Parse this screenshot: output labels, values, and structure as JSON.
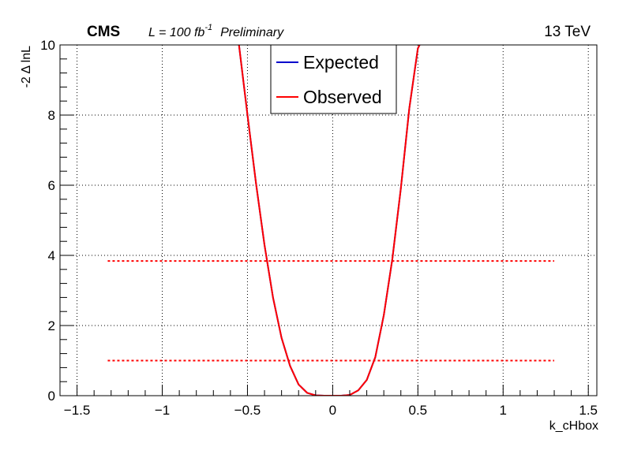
{
  "chart_data": {
    "type": "line",
    "title": "",
    "header": {
      "experiment": "CMS",
      "lumi_prefix": "L = 100 fb",
      "lumi_exponent": "-1",
      "status": "Preliminary",
      "energy": "13 TeV"
    },
    "xlabel": "k_cHbox",
    "ylabel": "-2 Δ lnL",
    "xlim": [
      -1.6,
      1.55
    ],
    "ylim": [
      0,
      10
    ],
    "x_ticks": [
      -1.5,
      -1,
      -0.5,
      0,
      0.5,
      1,
      1.5
    ],
    "x_tick_labels": [
      "−1.5",
      "−1",
      "−0.5",
      "0",
      "0.5",
      "1",
      "1.5"
    ],
    "y_ticks": [
      0,
      2,
      4,
      6,
      8,
      10
    ],
    "y_tick_labels": [
      "0",
      "2",
      "4",
      "6",
      "8",
      "10"
    ],
    "grid": true,
    "legend": {
      "position": "top-center"
    },
    "series": [
      {
        "name": "Expected",
        "color": "#0000cc",
        "style": "solid",
        "x": [
          -0.55,
          -0.5,
          -0.45,
          -0.4,
          -0.35,
          -0.3,
          -0.25,
          -0.2,
          -0.15,
          -0.1,
          -0.05,
          0.0,
          0.05,
          0.1,
          0.15,
          0.2,
          0.25,
          0.3,
          0.35,
          0.4,
          0.45,
          0.5,
          0.51
        ],
        "y": [
          10.0,
          8.0,
          6.05,
          4.3,
          2.8,
          1.65,
          0.85,
          0.32,
          0.08,
          0.01,
          0.0,
          0.0,
          0.0,
          0.02,
          0.15,
          0.45,
          1.1,
          2.3,
          3.9,
          5.9,
          8.2,
          9.9,
          10.0
        ]
      },
      {
        "name": "Observed",
        "color": "#ff0000",
        "style": "solid",
        "x": [
          -0.55,
          -0.5,
          -0.45,
          -0.4,
          -0.35,
          -0.3,
          -0.25,
          -0.2,
          -0.15,
          -0.1,
          -0.05,
          0.0,
          0.05,
          0.1,
          0.15,
          0.2,
          0.25,
          0.3,
          0.35,
          0.4,
          0.45,
          0.5,
          0.51
        ],
        "y": [
          10.0,
          8.0,
          6.05,
          4.3,
          2.8,
          1.65,
          0.85,
          0.32,
          0.08,
          0.01,
          0.0,
          0.0,
          0.0,
          0.02,
          0.15,
          0.45,
          1.1,
          2.3,
          3.9,
          5.9,
          8.2,
          9.9,
          10.0
        ]
      }
    ],
    "reference_lines": [
      {
        "y": 1.0,
        "x_range": [
          -1.32,
          1.3
        ],
        "color": "#ff0000",
        "style": "dotted"
      },
      {
        "y": 3.84,
        "x_range": [
          -1.32,
          1.3
        ],
        "color": "#ff0000",
        "style": "dotted"
      }
    ]
  }
}
